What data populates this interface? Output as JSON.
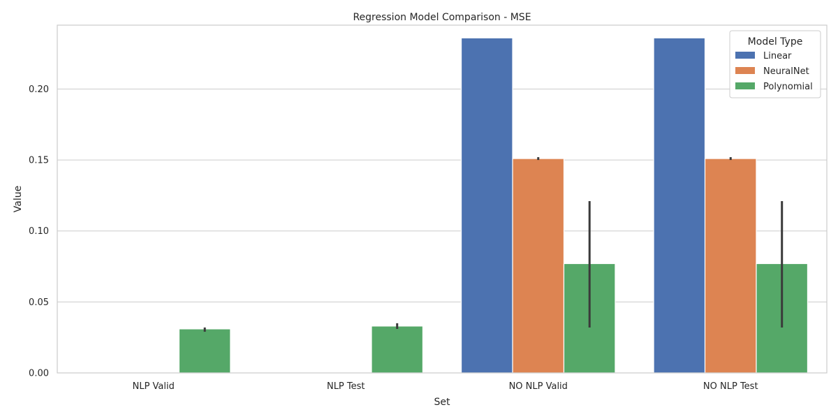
{
  "chart_data": {
    "type": "bar",
    "title": "Regression Model Comparison - MSE",
    "xlabel": "Set",
    "ylabel": "Value",
    "categories": [
      "NLP Valid",
      "NLP Test",
      "NO NLP Valid",
      "NO NLP Test"
    ],
    "ylim": [
      0,
      0.245
    ],
    "yticks": [
      0.0,
      0.05,
      0.1,
      0.15,
      0.2
    ],
    "ytick_labels": [
      "0.00",
      "0.05",
      "0.10",
      "0.15",
      "0.20"
    ],
    "grid": true,
    "legend": {
      "title": "Model Type",
      "position": "top-right"
    },
    "series": [
      {
        "name": "Linear",
        "color": "#4c72b0",
        "values": [
          null,
          null,
          0.236,
          0.236
        ],
        "err_low": [
          null,
          null,
          null,
          null
        ],
        "err_high": [
          null,
          null,
          null,
          null
        ]
      },
      {
        "name": "NeuralNet",
        "color": "#dd8452",
        "values": [
          null,
          null,
          0.151,
          0.151
        ],
        "err_low": [
          null,
          null,
          0.15,
          0.15
        ],
        "err_high": [
          null,
          null,
          0.152,
          0.152
        ]
      },
      {
        "name": "Polynomial",
        "color": "#55a868",
        "values": [
          0.031,
          0.033,
          0.077,
          0.077
        ],
        "err_low": [
          0.029,
          0.031,
          0.032,
          0.032
        ],
        "err_high": [
          0.032,
          0.035,
          0.121,
          0.121
        ]
      }
    ]
  }
}
